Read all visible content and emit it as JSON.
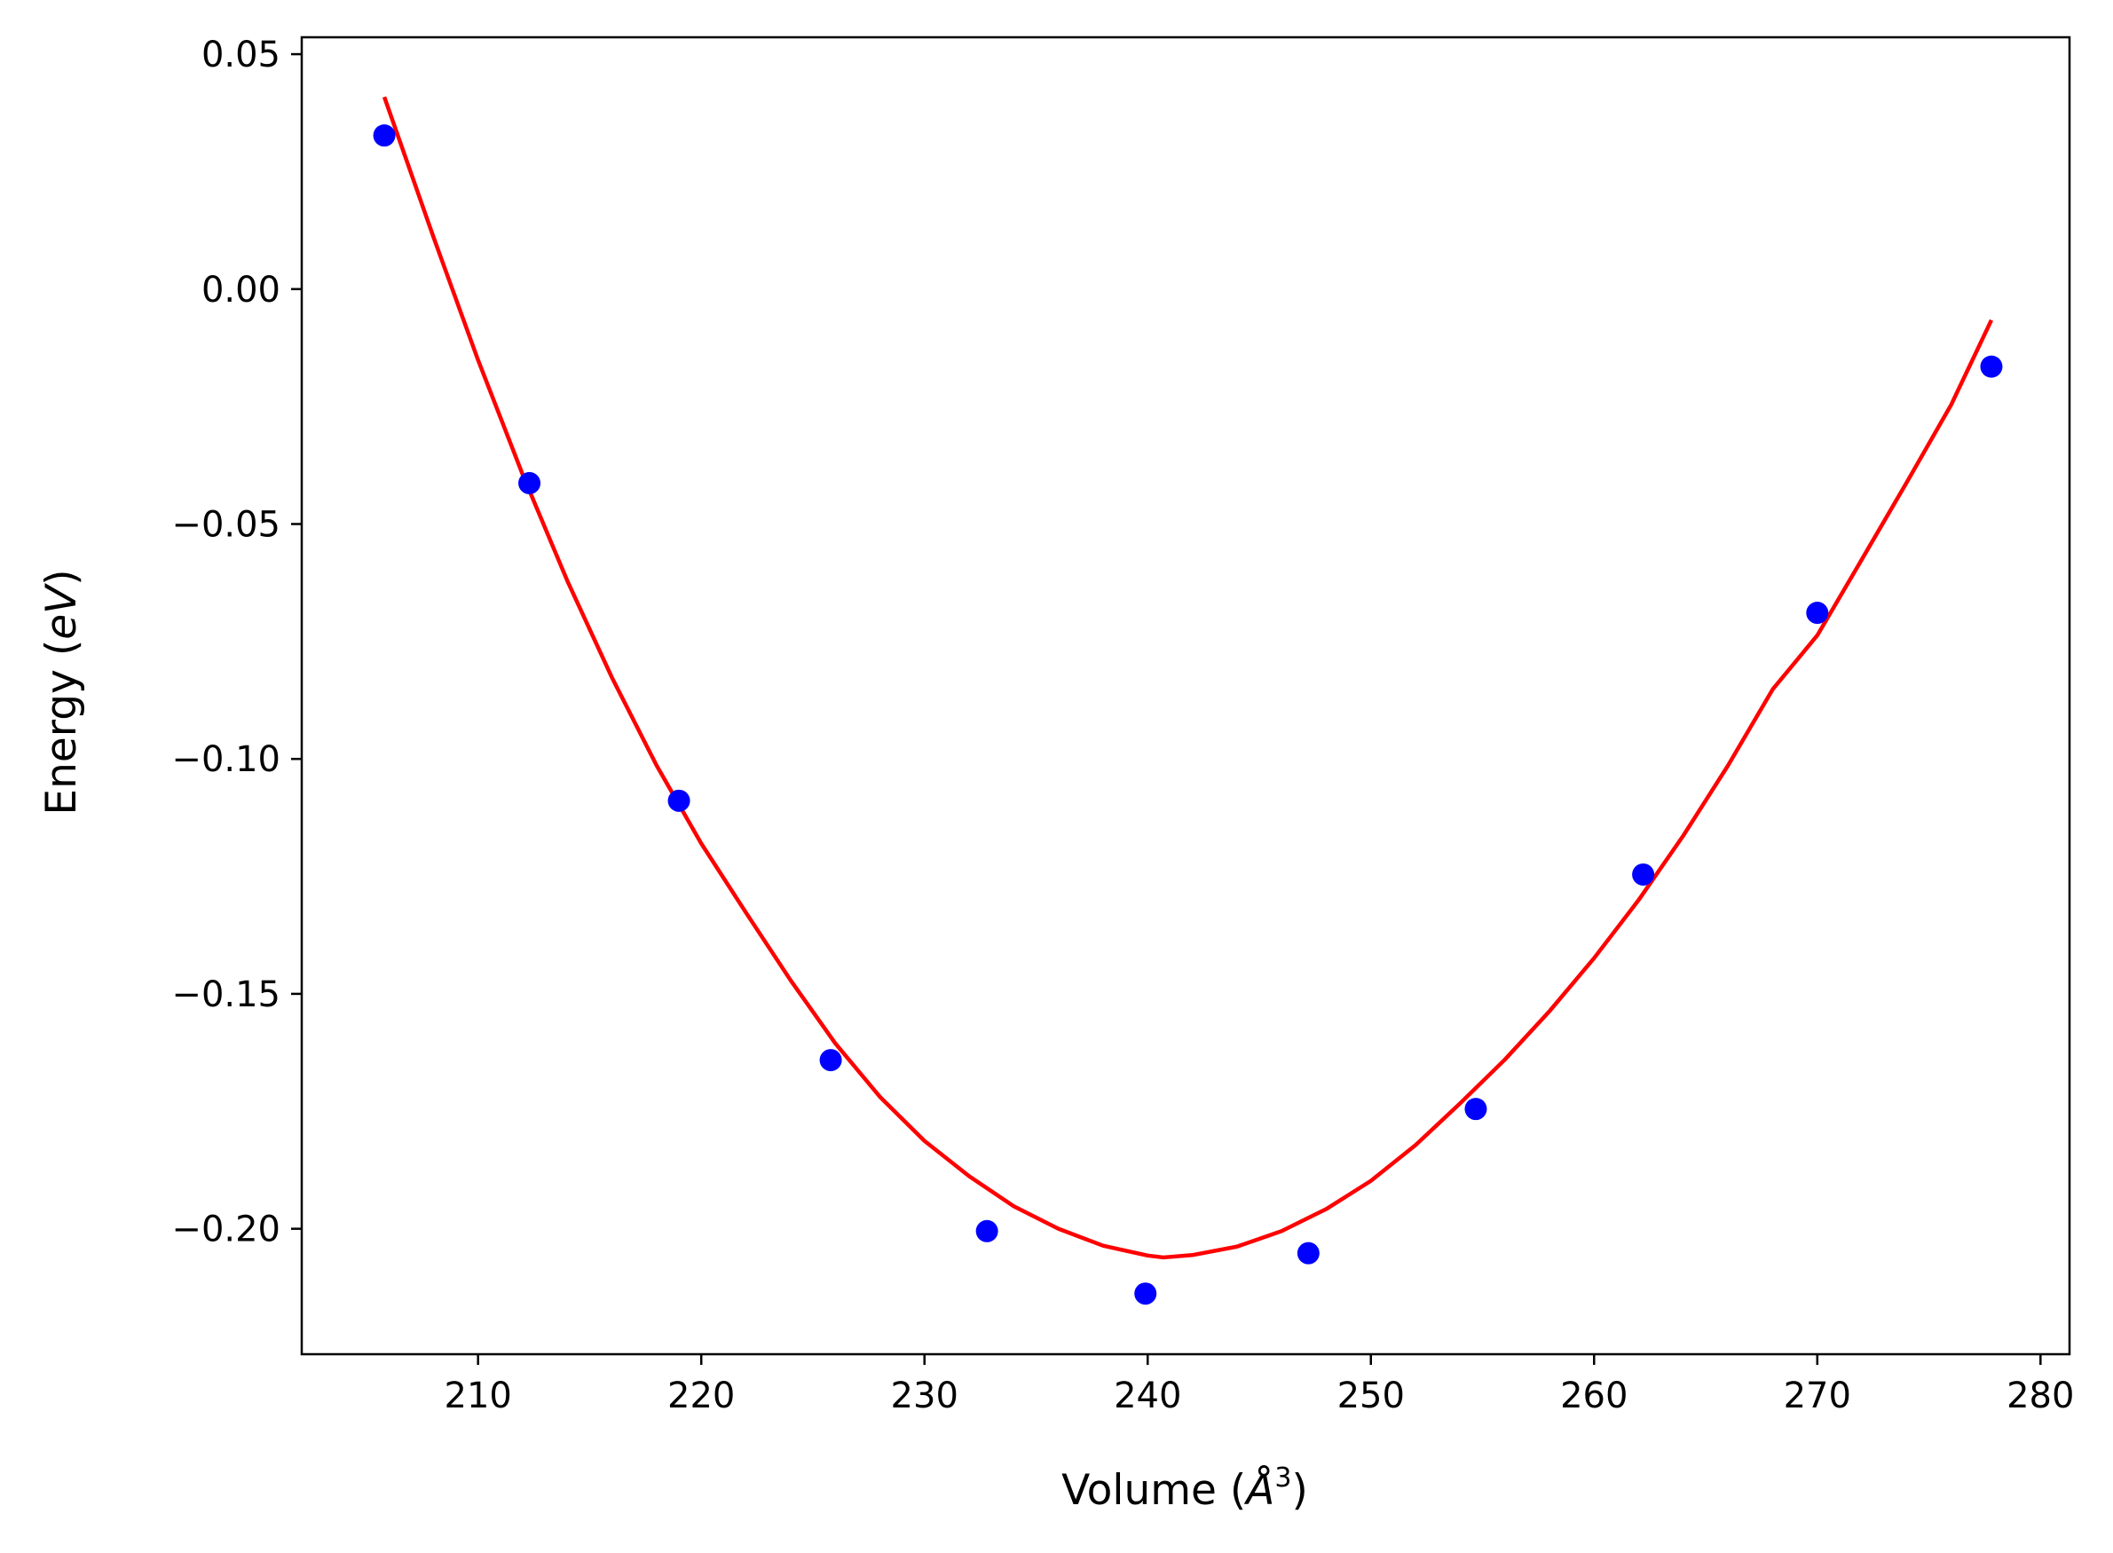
{
  "chart_data": {
    "type": "scatter",
    "title": "",
    "xlabel_parts": [
      "Volume (",
      "Å",
      "3",
      ")"
    ],
    "ylabel_parts": [
      "Energy (",
      "eV",
      ")"
    ],
    "xlim": [
      202.1,
      281.3
    ],
    "ylim": [
      -0.2267,
      0.0536
    ],
    "xticks": [
      210,
      220,
      230,
      240,
      250,
      260,
      270,
      280
    ],
    "xtick_labels": [
      "210",
      "220",
      "230",
      "240",
      "250",
      "260",
      "270",
      "280"
    ],
    "yticks": [
      0.05,
      0.0,
      -0.05,
      -0.1,
      -0.15,
      -0.2
    ],
    "ytick_labels": [
      "0.05",
      "0.00",
      "−0.05",
      "−0.10",
      "−0.15",
      "−0.20"
    ],
    "grid": false,
    "series": [
      {
        "type": "scatter",
        "color": "#0000ff",
        "x": [
          205.8,
          212.3,
          219.0,
          225.8,
          232.8,
          239.9,
          247.2,
          254.7,
          262.2,
          270.0,
          277.8
        ],
        "y": [
          0.0327,
          -0.0413,
          -0.1089,
          -0.1641,
          -0.2005,
          -0.2138,
          -0.2052,
          -0.1745,
          -0.1246,
          -0.0689,
          -0.0165
        ]
      },
      {
        "type": "line",
        "color": "#ff0000",
        "x": [
          205.8,
          208.0,
          210.0,
          212.0,
          214.0,
          216.0,
          218.0,
          220.0,
          222.0,
          224.0,
          226.0,
          228.0,
          230.0,
          232.0,
          234.0,
          236.0,
          238.0,
          240.0,
          240.7,
          242.0,
          244.0,
          246.0,
          248.0,
          250.0,
          252.0,
          254.0,
          256.0,
          258.0,
          260.0,
          262.0,
          264.0,
          266.0,
          268.0,
          270.0,
          272.0,
          274.0,
          276.0,
          277.8
        ],
        "y": [
          0.0409,
          0.0111,
          -0.0151,
          -0.0395,
          -0.0621,
          -0.0827,
          -0.1014,
          -0.118,
          -0.1327,
          -0.1471,
          -0.1605,
          -0.1719,
          -0.1813,
          -0.1888,
          -0.1952,
          -0.2,
          -0.2036,
          -0.2057,
          -0.2061,
          -0.2056,
          -0.2038,
          -0.2005,
          -0.1958,
          -0.1898,
          -0.1822,
          -0.1733,
          -0.164,
          -0.1537,
          -0.1424,
          -0.13,
          -0.1163,
          -0.1014,
          -0.0852,
          -0.0737,
          -0.0575,
          -0.0412,
          -0.0246,
          -0.0066
        ]
      }
    ]
  }
}
